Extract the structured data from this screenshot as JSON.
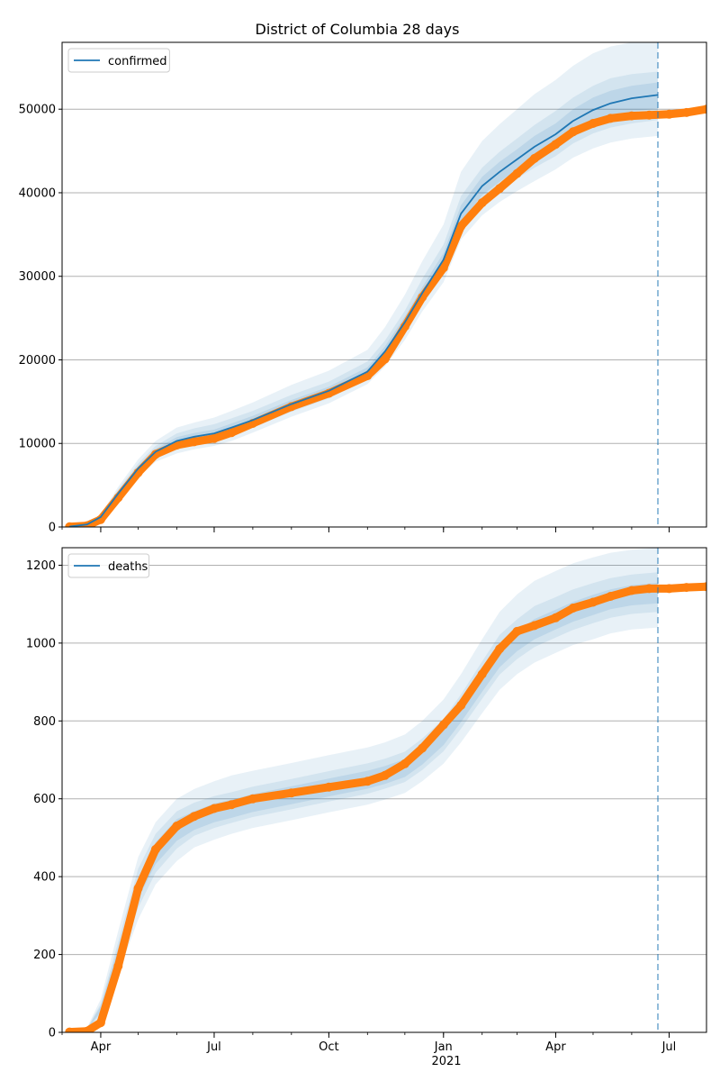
{
  "figure": {
    "title": "District of Columbia 28 days",
    "year_label": "2021"
  },
  "colors": {
    "model": "#1f77b4",
    "observed": "#ff7f0e",
    "band": "#1f77b4",
    "grid": "#b0b0b0",
    "forecast_start_line": "#1f77b4"
  },
  "chart_data": [
    {
      "type": "line",
      "panel": "top",
      "title": "District of Columbia 28 days",
      "x_axis": "date",
      "x_range": [
        "2020-03-01",
        "2021-07-31"
      ],
      "y_range": [
        0,
        58000
      ],
      "y_ticks": [
        0,
        10000,
        20000,
        30000,
        40000,
        50000
      ],
      "x_tick_labels": [
        "Apr",
        "Jul",
        "Oct",
        "Jan",
        "Apr",
        "Jul"
      ],
      "x_tick_dates": [
        "2020-04-01",
        "2020-07-01",
        "2020-10-01",
        "2021-01-01",
        "2021-04-01",
        "2021-07-01"
      ],
      "grid": "y",
      "legend_position": "top-left",
      "forecast_start": "2021-06-22",
      "series": [
        {
          "name": "confirmed",
          "kind": "model-median",
          "x": [
            "2020-03-07",
            "2020-03-21",
            "2020-04-01",
            "2020-04-15",
            "2020-05-01",
            "2020-05-15",
            "2020-06-01",
            "2020-06-15",
            "2020-07-01",
            "2020-07-15",
            "2020-08-01",
            "2020-09-01",
            "2020-10-01",
            "2020-11-01",
            "2020-11-15",
            "2020-12-01",
            "2020-12-15",
            "2021-01-01",
            "2021-01-15",
            "2021-02-01",
            "2021-02-15",
            "2021-03-01",
            "2021-03-15",
            "2021-04-01",
            "2021-04-15",
            "2021-05-01",
            "2021-05-15",
            "2021-06-01",
            "2021-06-22"
          ],
          "values": [
            50,
            300,
            1200,
            4000,
            7000,
            9000,
            10300,
            10800,
            11200,
            11900,
            12800,
            14700,
            16300,
            18600,
            21000,
            24500,
            28000,
            32000,
            37500,
            40800,
            42500,
            44000,
            45500,
            47000,
            48600,
            49900,
            50700,
            51300,
            51700
          ],
          "bands": [
            {
              "level": "outer",
              "lower": [
                40,
                250,
                1000,
                3200,
                6000,
                7800,
                8800,
                9300,
                9700,
                10300,
                11300,
                13200,
                14800,
                17100,
                19200,
                22400,
                25800,
                29300,
                34400,
                37300,
                38900,
                40200,
                41400,
                42800,
                44200,
                45300,
                46000,
                46500,
                46800
              ],
              "upper": [
                60,
                360,
                1500,
                4800,
                8100,
                10300,
                11900,
                12500,
                13100,
                13900,
                14900,
                17000,
                18700,
                21200,
                23900,
                27800,
                31800,
                36200,
                42500,
                46200,
                48200,
                50000,
                51800,
                53500,
                55200,
                56700,
                57500,
                58000,
                58000
              ]
            },
            {
              "level": "middle",
              "lower": [
                45,
                270,
                1100,
                3500,
                6400,
                8300,
                9400,
                9900,
                10300,
                10900,
                11900,
                13800,
                15400,
                17700,
                19900,
                23200,
                26700,
                30400,
                35600,
                38700,
                40300,
                41700,
                43000,
                44400,
                45900,
                47100,
                47800,
                48300,
                48700
              ],
              "upper": [
                55,
                330,
                1350,
                4500,
                7600,
                9700,
                11200,
                11800,
                12300,
                13000,
                13900,
                15800,
                17400,
                19800,
                22300,
                25900,
                29700,
                33800,
                39600,
                43000,
                44900,
                46500,
                48100,
                49800,
                51400,
                52800,
                53700,
                54200,
                54500
              ]
            },
            {
              "level": "inner",
              "lower": [
                48,
                285,
                1150,
                3750,
                6700,
                8650,
                9850,
                10350,
                10750,
                11400,
                12300,
                14200,
                15800,
                18100,
                20400,
                23800,
                27300,
                31200,
                36500,
                39700,
                41300,
                42800,
                44200,
                45700,
                47200,
                48400,
                49200,
                49700,
                50100
              ],
              "upper": [
                52,
                315,
                1260,
                4250,
                7300,
                9350,
                10750,
                11250,
                11650,
                12400,
                13300,
                15200,
                16800,
                19100,
                21600,
                25200,
                28700,
                32800,
                38500,
                41900,
                43700,
                45200,
                46800,
                48300,
                50000,
                51400,
                52200,
                52800,
                53200
              ]
            }
          ]
        },
        {
          "name": "observed confirmed",
          "kind": "observed",
          "x": [
            "2020-03-07",
            "2020-03-21",
            "2020-04-01",
            "2020-04-15",
            "2020-05-01",
            "2020-05-15",
            "2020-06-01",
            "2020-06-15",
            "2020-07-01",
            "2020-07-15",
            "2020-08-01",
            "2020-09-01",
            "2020-10-01",
            "2020-11-01",
            "2020-11-15",
            "2020-12-01",
            "2020-12-15",
            "2021-01-01",
            "2021-01-15",
            "2021-02-01",
            "2021-02-15",
            "2021-03-01",
            "2021-03-15",
            "2021-04-01",
            "2021-04-15",
            "2021-05-01",
            "2021-05-15",
            "2021-06-01",
            "2021-06-15",
            "2021-07-01",
            "2021-07-15",
            "2021-07-31"
          ],
          "values": [
            20,
            150,
            900,
            3500,
            6500,
            8700,
            9800,
            10200,
            10600,
            11300,
            12400,
            14400,
            16000,
            18100,
            20100,
            24000,
            27500,
            31000,
            36000,
            38800,
            40500,
            42300,
            44100,
            45800,
            47300,
            48300,
            48900,
            49200,
            49300,
            49400,
            49600,
            50000
          ]
        }
      ]
    },
    {
      "type": "line",
      "panel": "bottom",
      "title": "",
      "x_axis": "date",
      "x_range": [
        "2020-03-01",
        "2021-07-31"
      ],
      "y_range": [
        0,
        1245
      ],
      "y_ticks": [
        0,
        200,
        400,
        600,
        800,
        1000,
        1200
      ],
      "x_tick_labels": [
        "Apr",
        "Jul",
        "Oct",
        "Jan",
        "Apr",
        "Jul"
      ],
      "x_tick_dates": [
        "2020-04-01",
        "2020-07-01",
        "2020-10-01",
        "2021-01-01",
        "2021-04-01",
        "2021-07-01"
      ],
      "grid": "y",
      "legend_position": "top-left",
      "forecast_start": "2021-06-22",
      "series": [
        {
          "name": "deaths",
          "kind": "model-median",
          "x": [
            "2020-03-07",
            "2020-03-21",
            "2020-04-01",
            "2020-04-15",
            "2020-05-01",
            "2020-05-15",
            "2020-06-01",
            "2020-06-15",
            "2020-07-01",
            "2020-07-15",
            "2020-08-01",
            "2020-09-01",
            "2020-10-01",
            "2020-11-01",
            "2020-11-15",
            "2020-12-01",
            "2020-12-15",
            "2021-01-01",
            "2021-01-15",
            "2021-02-01",
            "2021-02-15",
            "2021-03-01",
            "2021-03-15",
            "2021-04-01",
            "2021-04-15",
            "2021-05-01",
            "2021-05-15",
            "2021-06-01",
            "2021-06-22"
          ],
          "values": [
            2,
            8,
            60,
            200,
            370,
            460,
            520,
            545,
            565,
            575,
            590,
            610,
            630,
            650,
            662,
            680,
            710,
            760,
            820,
            900,
            965,
            1005,
            1035,
            1060,
            1080,
            1100,
            1115,
            1125,
            1130
          ],
          "bands": [
            {
              "level": "outer",
              "lower": [
                1,
                5,
                40,
                150,
                290,
                380,
                440,
                475,
                495,
                510,
                525,
                545,
                565,
                585,
                598,
                615,
                645,
                690,
                745,
                820,
                880,
                920,
                950,
                975,
                995,
                1010,
                1025,
                1035,
                1040
              ],
              "upper": [
                3,
                12,
                85,
                260,
                450,
                540,
                600,
                625,
                645,
                660,
                672,
                692,
                712,
                732,
                745,
                765,
                800,
                855,
                920,
                1010,
                1080,
                1125,
                1160,
                1185,
                1205,
                1220,
                1232,
                1240,
                1245
              ]
            },
            {
              "level": "middle",
              "lower": [
                1,
                6,
                47,
                168,
                320,
                410,
                472,
                505,
                525,
                538,
                553,
                573,
                593,
                613,
                626,
                643,
                674,
                722,
                780,
                857,
                919,
                959,
                990,
                1014,
                1034,
                1051,
                1065,
                1075,
                1080
              ],
              "upper": [
                3,
                10,
                73,
                232,
                420,
                510,
                568,
                590,
                607,
                617,
                631,
                651,
                671,
                691,
                703,
                721,
                755,
                805,
                868,
                953,
                1021,
                1061,
                1095,
                1118,
                1138,
                1154,
                1167,
                1176,
                1182
              ]
            },
            {
              "level": "inner",
              "lower": [
                2,
                7,
                53,
                183,
                344,
                432,
                492,
                520,
                540,
                551,
                566,
                586,
                606,
                626,
                638,
                656,
                688,
                738,
                797,
                875,
                938,
                979,
                1010,
                1035,
                1055,
                1072,
                1087,
                1097,
                1102
              ],
              "upper": [
                2,
                9,
                67,
                217,
                395,
                488,
                548,
                568,
                588,
                598,
                612,
                632,
                652,
                672,
                684,
                702,
                734,
                783,
                843,
                925,
                992,
                1031,
                1062,
                1086,
                1106,
                1124,
                1138,
                1149,
                1155
              ]
            }
          ]
        },
        {
          "name": "observed deaths",
          "kind": "observed",
          "x": [
            "2020-03-07",
            "2020-03-21",
            "2020-04-01",
            "2020-04-15",
            "2020-05-01",
            "2020-05-15",
            "2020-06-01",
            "2020-06-15",
            "2020-07-01",
            "2020-07-15",
            "2020-08-01",
            "2020-09-01",
            "2020-10-01",
            "2020-11-01",
            "2020-11-15",
            "2020-12-01",
            "2020-12-15",
            "2021-01-01",
            "2021-01-15",
            "2021-02-01",
            "2021-02-15",
            "2021-03-01",
            "2021-03-15",
            "2021-04-01",
            "2021-04-15",
            "2021-05-01",
            "2021-05-15",
            "2021-06-01",
            "2021-06-15",
            "2021-07-01",
            "2021-07-15",
            "2021-07-31"
          ],
          "values": [
            1,
            3,
            25,
            170,
            370,
            470,
            530,
            555,
            575,
            585,
            600,
            615,
            630,
            645,
            660,
            690,
            730,
            790,
            840,
            920,
            985,
            1030,
            1045,
            1065,
            1090,
            1105,
            1120,
            1135,
            1140,
            1140,
            1143,
            1145
          ]
        }
      ]
    }
  ]
}
